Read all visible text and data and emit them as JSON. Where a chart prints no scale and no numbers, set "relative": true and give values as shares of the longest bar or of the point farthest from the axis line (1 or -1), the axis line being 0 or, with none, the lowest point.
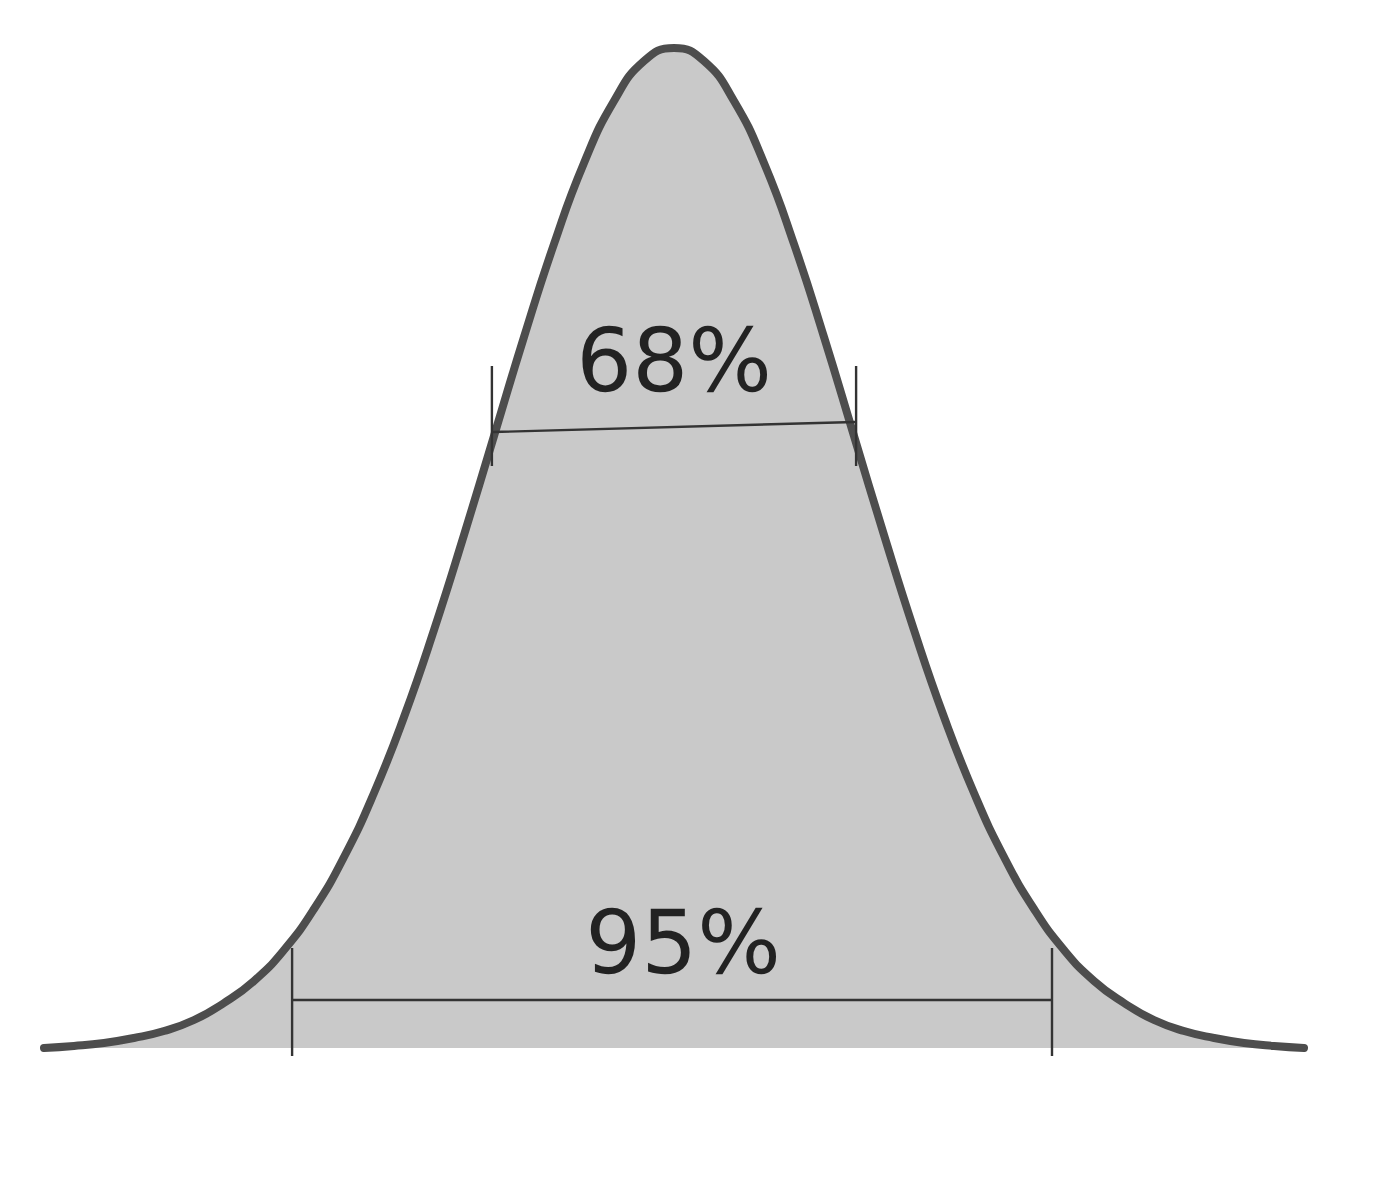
{
  "chart_data": {
    "type": "area",
    "relative": true,
    "categories": [
      null,
      null,
      null,
      null,
      null,
      null,
      null,
      null,
      null,
      null,
      null,
      null,
      null,
      null,
      null,
      null,
      null,
      null,
      null,
      null,
      null,
      null,
      null,
      null,
      null,
      null,
      null,
      null,
      null,
      null,
      null,
      null,
      null,
      null,
      null,
      null,
      null,
      null,
      null,
      null,
      null,
      null,
      null
    ],
    "values": [
      0,
      0.002,
      0.005,
      0.01,
      0.017,
      0.028,
      0.045,
      0.067,
      0.098,
      0.139,
      0.191,
      0.255,
      0.331,
      0.418,
      0.513,
      0.612,
      0.711,
      0.804,
      0.885,
      0.947,
      0.987,
      1,
      0.987,
      0.947,
      0.885,
      0.804,
      0.711,
      0.612,
      0.513,
      0.418,
      0.331,
      0.255,
      0.191,
      0.139,
      0.098,
      0.067,
      0.045,
      0.028,
      0.017,
      0.01,
      0.005,
      0.002,
      0
    ],
    "color": "#4d4d4d",
    "annotations": [
      "68%",
      "95%"
    ]
  }
}
